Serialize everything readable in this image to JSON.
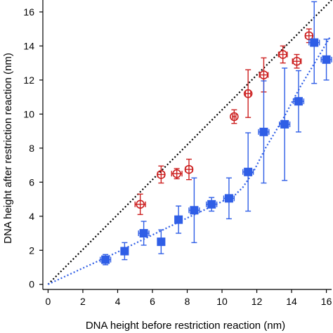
{
  "chart_data": {
    "type": "scatter",
    "xlabel": "DNA height before restriction reaction (nm)",
    "ylabel": "DNA height after restriction reaction (nm)",
    "xlim": [
      -0.3,
      16.3
    ],
    "ylim": [
      -0.3,
      16.7
    ],
    "xticks": [
      0,
      2,
      4,
      6,
      8,
      10,
      12,
      14,
      16
    ],
    "yticks": [
      0,
      2,
      4,
      6,
      8,
      10,
      12,
      14,
      16
    ],
    "grid": false,
    "legend": "none",
    "colors": {
      "red": "#cc1f1f",
      "blue": "#2f5ee6",
      "reference": "#000000"
    },
    "series": [
      {
        "marker": "open-circle",
        "color": "#cc1f1f",
        "points": [
          {
            "x": 5.3,
            "y": 4.7,
            "xerr": 0.3,
            "yerr": 0.6
          },
          {
            "x": 6.5,
            "y": 6.45,
            "xerr": 0.2,
            "yerr": 0.5
          },
          {
            "x": 7.4,
            "y": 6.5,
            "xerr": 0.3,
            "yerr": 0.3
          },
          {
            "x": 8.1,
            "y": 6.75,
            "xerr": 0.2,
            "yerr": 0.6
          },
          {
            "x": 10.7,
            "y": 9.85,
            "xerr": 0.1,
            "yerr": 0.4
          },
          {
            "x": 11.5,
            "y": 11.2,
            "xerr": 0.15,
            "yerr": 1.4
          },
          {
            "x": 12.4,
            "y": 12.3,
            "xerr": 0.25,
            "yerr": 1.0
          },
          {
            "x": 13.5,
            "y": 13.5,
            "xerr": 0.25,
            "yerr": 0.5
          },
          {
            "x": 14.3,
            "y": 13.1,
            "xerr": 0.25,
            "yerr": 0.4
          },
          {
            "x": 15.0,
            "y": 14.6,
            "xerr": 0.2,
            "yerr": 0.4
          }
        ]
      },
      {
        "marker": "filled-square",
        "color": "#2f5ee6",
        "points": [
          {
            "x": 3.3,
            "y": 1.45,
            "xerr": 0.3,
            "yerr": 0.3
          },
          {
            "x": 4.4,
            "y": 1.95,
            "xerr": 0.2,
            "yerr": 0.5
          },
          {
            "x": 5.5,
            "y": 3.0,
            "xerr": 0.3,
            "yerr": 0.7
          },
          {
            "x": 6.5,
            "y": 2.5,
            "xerr": 0.1,
            "yerr": 0.7
          },
          {
            "x": 7.5,
            "y": 3.8,
            "xerr": 0.2,
            "yerr": 0.8
          },
          {
            "x": 8.4,
            "y": 4.35,
            "xerr": 0.3,
            "yerr": 1.9
          },
          {
            "x": 9.4,
            "y": 4.7,
            "xerr": 0.3,
            "yerr": 0.4
          },
          {
            "x": 10.4,
            "y": 5.05,
            "xerr": 0.3,
            "yerr": 1.2
          },
          {
            "x": 11.5,
            "y": 6.6,
            "xerr": 0.3,
            "yerr": 2.3
          },
          {
            "x": 12.4,
            "y": 8.95,
            "xerr": 0.3,
            "yerr": 3.0
          },
          {
            "x": 13.6,
            "y": 9.4,
            "xerr": 0.3,
            "yerr": 3.3
          },
          {
            "x": 14.4,
            "y": 10.75,
            "xerr": 0.3,
            "yerr": 1.8
          },
          {
            "x": 15.3,
            "y": 14.2,
            "xerr": 0.3,
            "yerr": 2.4
          },
          {
            "x": 16.0,
            "y": 13.2,
            "xerr": 0.3,
            "yerr": 1.2
          }
        ]
      }
    ],
    "reference_line": {
      "style": "dotted",
      "color": "#000000",
      "from": [
        0,
        0
      ],
      "to": [
        16.3,
        16.7
      ]
    },
    "fit_line": {
      "style": "dotted",
      "color": "#2f5ee6",
      "points": [
        [
          0,
          0
        ],
        [
          4,
          1.9
        ],
        [
          8,
          3.9
        ],
        [
          10.7,
          5.2
        ],
        [
          11.2,
          5.7
        ],
        [
          11.8,
          6.6
        ],
        [
          12.5,
          8.0
        ],
        [
          13.5,
          9.7
        ],
        [
          14.5,
          11.6
        ],
        [
          15.5,
          13.3
        ],
        [
          16.2,
          14.5
        ]
      ]
    }
  }
}
